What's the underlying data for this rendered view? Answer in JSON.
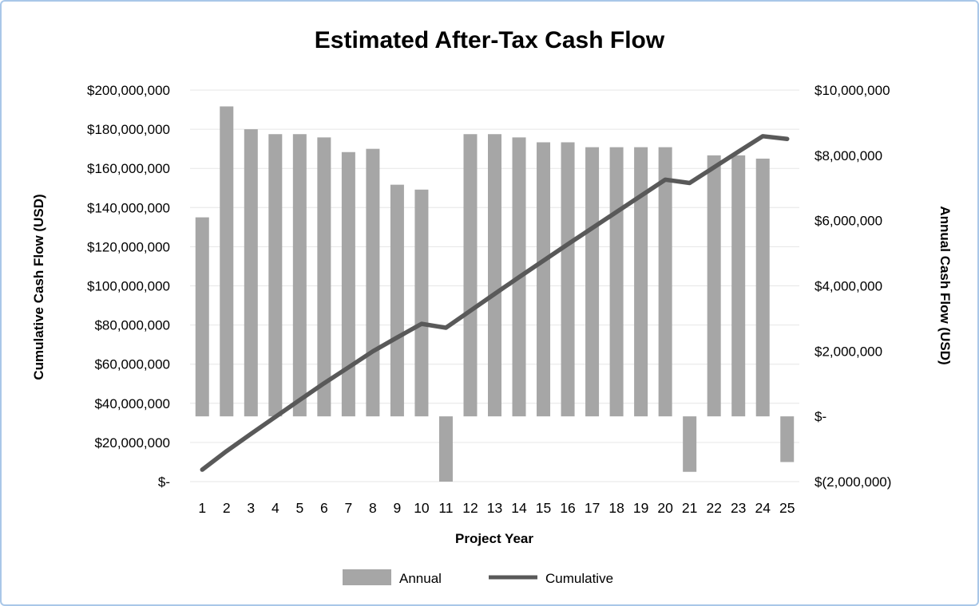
{
  "frame": {
    "border_color": "#a9c7e8",
    "background": "#ffffff"
  },
  "chart_data": {
    "type": "combo-bar-line",
    "title": "Estimated After-Tax Cash Flow",
    "xlabel": "Project Year",
    "x": [
      1,
      2,
      3,
      4,
      5,
      6,
      7,
      8,
      9,
      10,
      11,
      12,
      13,
      14,
      15,
      16,
      17,
      18,
      19,
      20,
      21,
      22,
      23,
      24,
      25
    ],
    "left_axis": {
      "title": "Cumulative Cash Flow (USD)",
      "min": 0,
      "max": 200000000,
      "step": 20000000,
      "tick_labels": [
        "$-",
        "$20,000,000",
        "$40,000,000",
        "$60,000,000",
        "$80,000,000",
        "$100,000,000",
        "$120,000,000",
        "$140,000,000",
        "$160,000,000",
        "$180,000,000",
        "$200,000,000"
      ]
    },
    "right_axis": {
      "title": "Annual Cash Flow (USD)",
      "min": -2000000,
      "max": 10000000,
      "step": 2000000,
      "tick_labels": [
        "$(2,000,000)",
        "$-",
        "$2,000,000",
        "$4,000,000",
        "$6,000,000",
        "$8,000,000",
        "$10,000,000"
      ]
    },
    "series": [
      {
        "name": "Annual",
        "type": "bar",
        "axis": "right",
        "color": "#a6a6a6",
        "values": [
          6100000,
          9500000,
          8800000,
          8650000,
          8650000,
          8550000,
          8100000,
          8200000,
          7100000,
          6950000,
          -2000000,
          8650000,
          8650000,
          8550000,
          8400000,
          8400000,
          8250000,
          8250000,
          8250000,
          8250000,
          -1700000,
          8000000,
          8000000,
          7900000,
          -1400000
        ]
      },
      {
        "name": "Cumulative",
        "type": "line",
        "axis": "left",
        "color": "#595959",
        "values": [
          6100000,
          15600000,
          24400000,
          33050000,
          41700000,
          50250000,
          58350000,
          66550000,
          73650000,
          80600000,
          78600000,
          87250000,
          95900000,
          104450000,
          112850000,
          121250000,
          129500000,
          137750000,
          146000000,
          154250000,
          152550000,
          160550000,
          168550000,
          176450000,
          175050000
        ]
      }
    ],
    "grid": true,
    "gridline_color": "#e6e6e6",
    "legend_position": "bottom"
  }
}
